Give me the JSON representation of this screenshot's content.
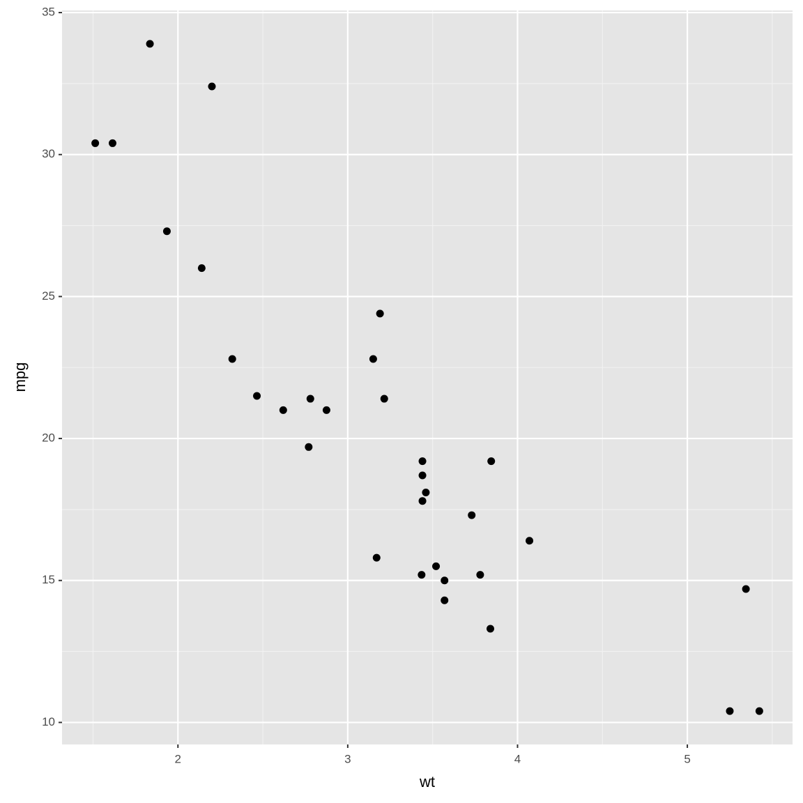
{
  "chart_data": {
    "type": "scatter",
    "x_label": "wt",
    "y_label": "mpg",
    "x": [
      2.62,
      2.875,
      2.32,
      3.215,
      3.44,
      3.46,
      3.57,
      3.19,
      3.15,
      3.44,
      3.44,
      4.07,
      3.73,
      3.78,
      5.25,
      5.424,
      5.345,
      2.2,
      1.615,
      1.835,
      2.465,
      3.52,
      3.435,
      3.84,
      3.845,
      1.935,
      2.14,
      1.513,
      3.17,
      2.77,
      3.57,
      2.78
    ],
    "values": [
      21.0,
      21.0,
      22.8,
      21.4,
      18.7,
      18.1,
      14.3,
      24.4,
      22.8,
      19.2,
      17.8,
      16.4,
      17.3,
      15.2,
      10.4,
      10.4,
      14.7,
      32.4,
      30.4,
      33.9,
      21.5,
      15.5,
      15.2,
      13.3,
      19.2,
      27.3,
      26.0,
      30.4,
      15.8,
      19.7,
      15.0,
      21.4
    ],
    "color": "#000000",
    "xlim": [
      1.31745,
      5.61955
    ],
    "xticks": [
      2,
      3,
      4,
      5
    ],
    "ylim": [
      9.225,
      35.075
    ],
    "yticks": [
      10,
      15,
      20,
      25,
      30,
      35
    ],
    "grid": true
  }
}
